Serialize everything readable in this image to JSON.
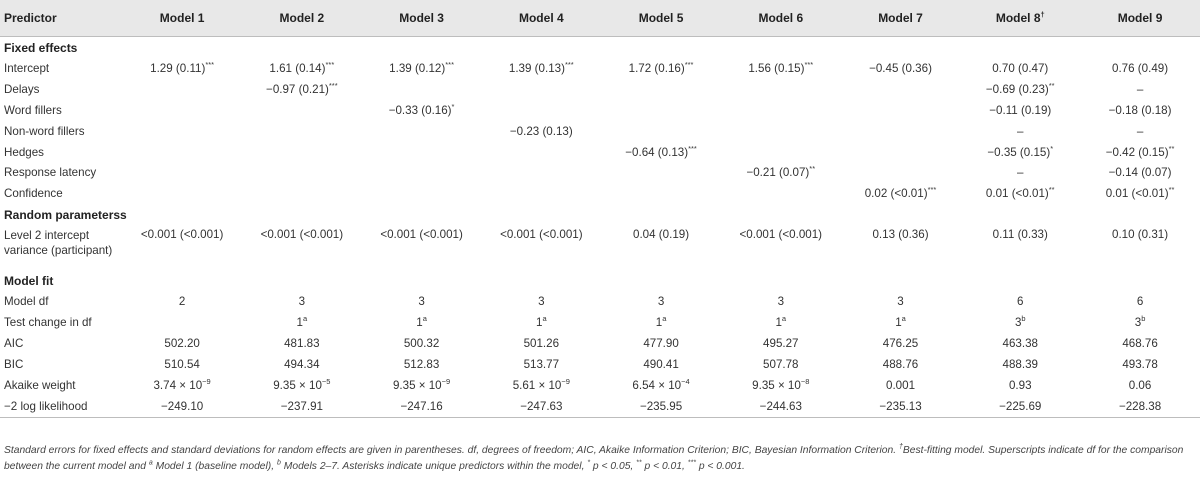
{
  "table": {
    "header": {
      "predictor": "Predictor",
      "models": [
        {
          "label": "Model 1",
          "sup": ""
        },
        {
          "label": "Model 2",
          "sup": ""
        },
        {
          "label": "Model 3",
          "sup": ""
        },
        {
          "label": "Model 4",
          "sup": ""
        },
        {
          "label": "Model 5",
          "sup": ""
        },
        {
          "label": "Model 6",
          "sup": ""
        },
        {
          "label": "Model 7",
          "sup": ""
        },
        {
          "label": "Model 8",
          "sup": "†"
        },
        {
          "label": "Model 9",
          "sup": ""
        }
      ]
    },
    "sections": [
      {
        "title": "Fixed effects",
        "rows": [
          {
            "label": "Intercept",
            "cells": [
              {
                "v": "1.29 (0.11)",
                "s": "***"
              },
              {
                "v": "1.61 (0.14)",
                "s": "***"
              },
              {
                "v": "1.39 (0.12)",
                "s": "***"
              },
              {
                "v": "1.39 (0.13)",
                "s": "***"
              },
              {
                "v": "1.72 (0.16)",
                "s": "***"
              },
              {
                "v": "1.56 (0.15)",
                "s": "***"
              },
              {
                "v": "−0.45 (0.36)",
                "s": ""
              },
              {
                "v": "0.70 (0.47)",
                "s": ""
              },
              {
                "v": "0.76 (0.49)",
                "s": ""
              }
            ]
          },
          {
            "label": "Delays",
            "cells": [
              {
                "v": "",
                "s": ""
              },
              {
                "v": "−0.97 (0.21)",
                "s": "***"
              },
              {
                "v": "",
                "s": ""
              },
              {
                "v": "",
                "s": ""
              },
              {
                "v": "",
                "s": ""
              },
              {
                "v": "",
                "s": ""
              },
              {
                "v": "",
                "s": ""
              },
              {
                "v": "−0.69 (0.23)",
                "s": "**"
              },
              {
                "v": "–",
                "s": ""
              }
            ]
          },
          {
            "label": "Word fillers",
            "cells": [
              {
                "v": "",
                "s": ""
              },
              {
                "v": "",
                "s": ""
              },
              {
                "v": "−0.33 (0.16)",
                "s": "*"
              },
              {
                "v": "",
                "s": ""
              },
              {
                "v": "",
                "s": ""
              },
              {
                "v": "",
                "s": ""
              },
              {
                "v": "",
                "s": ""
              },
              {
                "v": "−0.11 (0.19)",
                "s": ""
              },
              {
                "v": "−0.18 (0.18)",
                "s": ""
              }
            ]
          },
          {
            "label": "Non-word fillers",
            "cells": [
              {
                "v": "",
                "s": ""
              },
              {
                "v": "",
                "s": ""
              },
              {
                "v": "",
                "s": ""
              },
              {
                "v": "−0.23 (0.13)",
                "s": ""
              },
              {
                "v": "",
                "s": ""
              },
              {
                "v": "",
                "s": ""
              },
              {
                "v": "",
                "s": ""
              },
              {
                "v": "–",
                "s": ""
              },
              {
                "v": "–",
                "s": ""
              }
            ]
          },
          {
            "label": "Hedges",
            "cells": [
              {
                "v": "",
                "s": ""
              },
              {
                "v": "",
                "s": ""
              },
              {
                "v": "",
                "s": ""
              },
              {
                "v": "",
                "s": ""
              },
              {
                "v": "−0.64 (0.13)",
                "s": "***"
              },
              {
                "v": "",
                "s": ""
              },
              {
                "v": "",
                "s": ""
              },
              {
                "v": "−0.35 (0.15)",
                "s": "*"
              },
              {
                "v": "−0.42 (0.15)",
                "s": "**"
              }
            ]
          },
          {
            "label": "Response latency",
            "cells": [
              {
                "v": "",
                "s": ""
              },
              {
                "v": "",
                "s": ""
              },
              {
                "v": "",
                "s": ""
              },
              {
                "v": "",
                "s": ""
              },
              {
                "v": "",
                "s": ""
              },
              {
                "v": "−0.21 (0.07)",
                "s": "**"
              },
              {
                "v": "",
                "s": ""
              },
              {
                "v": "–",
                "s": ""
              },
              {
                "v": "−0.14 (0.07)",
                "s": ""
              }
            ]
          },
          {
            "label": "Confidence",
            "cells": [
              {
                "v": "",
                "s": ""
              },
              {
                "v": "",
                "s": ""
              },
              {
                "v": "",
                "s": ""
              },
              {
                "v": "",
                "s": ""
              },
              {
                "v": "",
                "s": ""
              },
              {
                "v": "",
                "s": ""
              },
              {
                "v": "0.02 (<0.01)",
                "s": "***"
              },
              {
                "v": "0.01 (<0.01)",
                "s": "**"
              },
              {
                "v": "0.01 (<0.01)",
                "s": "**"
              }
            ]
          }
        ]
      },
      {
        "title": "Random parameterss",
        "rows": [
          {
            "label": "Level 2 intercept variance (participant)",
            "tall": true,
            "cells": [
              {
                "v": "<0.001 (<0.001)",
                "s": ""
              },
              {
                "v": "<0.001 (<0.001)",
                "s": ""
              },
              {
                "v": "<0.001 (<0.001)",
                "s": ""
              },
              {
                "v": "<0.001 (<0.001)",
                "s": ""
              },
              {
                "v": "0.04 (0.19)",
                "s": ""
              },
              {
                "v": "<0.001 (<0.001)",
                "s": ""
              },
              {
                "v": "0.13 (0.36)",
                "s": ""
              },
              {
                "v": "0.11 (0.33)",
                "s": ""
              },
              {
                "v": "0.10 (0.31)",
                "s": ""
              }
            ]
          }
        ]
      },
      {
        "title": "Model fit",
        "rows": [
          {
            "label": "Model df",
            "cells": [
              {
                "v": "2",
                "s": ""
              },
              {
                "v": "3",
                "s": ""
              },
              {
                "v": "3",
                "s": ""
              },
              {
                "v": "3",
                "s": ""
              },
              {
                "v": "3",
                "s": ""
              },
              {
                "v": "3",
                "s": ""
              },
              {
                "v": "3",
                "s": ""
              },
              {
                "v": "6",
                "s": ""
              },
              {
                "v": "6",
                "s": ""
              }
            ]
          },
          {
            "label": "Test change in df",
            "cells": [
              {
                "v": "",
                "s": ""
              },
              {
                "v": "1",
                "s": "a"
              },
              {
                "v": "1",
                "s": "a"
              },
              {
                "v": "1",
                "s": "a"
              },
              {
                "v": "1",
                "s": "a"
              },
              {
                "v": "1",
                "s": "a"
              },
              {
                "v": "1",
                "s": "a"
              },
              {
                "v": "3",
                "s": "b"
              },
              {
                "v": "3",
                "s": "b"
              }
            ]
          },
          {
            "label": "AIC",
            "cells": [
              {
                "v": "502.20",
                "s": ""
              },
              {
                "v": "481.83",
                "s": ""
              },
              {
                "v": "500.32",
                "s": ""
              },
              {
                "v": "501.26",
                "s": ""
              },
              {
                "v": "477.90",
                "s": ""
              },
              {
                "v": "495.27",
                "s": ""
              },
              {
                "v": "476.25",
                "s": ""
              },
              {
                "v": "463.38",
                "s": ""
              },
              {
                "v": "468.76",
                "s": ""
              }
            ]
          },
          {
            "label": "BIC",
            "cells": [
              {
                "v": "510.54",
                "s": ""
              },
              {
                "v": "494.34",
                "s": ""
              },
              {
                "v": "512.83",
                "s": ""
              },
              {
                "v": "513.77",
                "s": ""
              },
              {
                "v": "490.41",
                "s": ""
              },
              {
                "v": "507.78",
                "s": ""
              },
              {
                "v": "488.76",
                "s": ""
              },
              {
                "v": "488.39",
                "s": ""
              },
              {
                "v": "493.78",
                "s": ""
              }
            ]
          },
          {
            "label": "Akaike weight",
            "cells": [
              {
                "v": "3.74 × 10",
                "s": "−9"
              },
              {
                "v": "9.35 × 10",
                "s": "−5"
              },
              {
                "v": "9.35 × 10",
                "s": "−9"
              },
              {
                "v": "5.61 × 10",
                "s": "−9"
              },
              {
                "v": "6.54 × 10",
                "s": "−4"
              },
              {
                "v": "9.35 × 10",
                "s": "−8"
              },
              {
                "v": "0.001",
                "s": ""
              },
              {
                "v": "0.93",
                "s": ""
              },
              {
                "v": "0.06",
                "s": ""
              }
            ]
          },
          {
            "label": "−2 log likelihood",
            "last": true,
            "cells": [
              {
                "v": "−249.10",
                "s": ""
              },
              {
                "v": "−237.91",
                "s": ""
              },
              {
                "v": "−247.16",
                "s": ""
              },
              {
                "v": "−247.63",
                "s": ""
              },
              {
                "v": "−235.95",
                "s": ""
              },
              {
                "v": "−244.63",
                "s": ""
              },
              {
                "v": "−235.13",
                "s": ""
              },
              {
                "v": "−225.69",
                "s": ""
              },
              {
                "v": "−228.38",
                "s": ""
              }
            ]
          }
        ]
      }
    ]
  },
  "footnote": {
    "line1": "Standard errors for fixed effects and standard deviations for random effects are given in parentheses. df, degrees of freedom; AIC, Akaike Information Criterion; BIC, Bayesian Information Criterion.",
    "dagger": "†",
    "line1_tail": "Best-fitting model.",
    "line2_a": "Superscripts indicate df for the comparison between the current model and",
    "sup_a": "a",
    "line2_b": "Model 1 (baseline model),",
    "sup_b": "b",
    "line2_c": "Models 2–7. Asterisks indicate unique predictors within the model,",
    "star1": "*",
    "p1": "p < 0.05,",
    "star2": "**",
    "p2": "p < 0.01,",
    "star3": "***",
    "p3": "p < 0.001."
  }
}
